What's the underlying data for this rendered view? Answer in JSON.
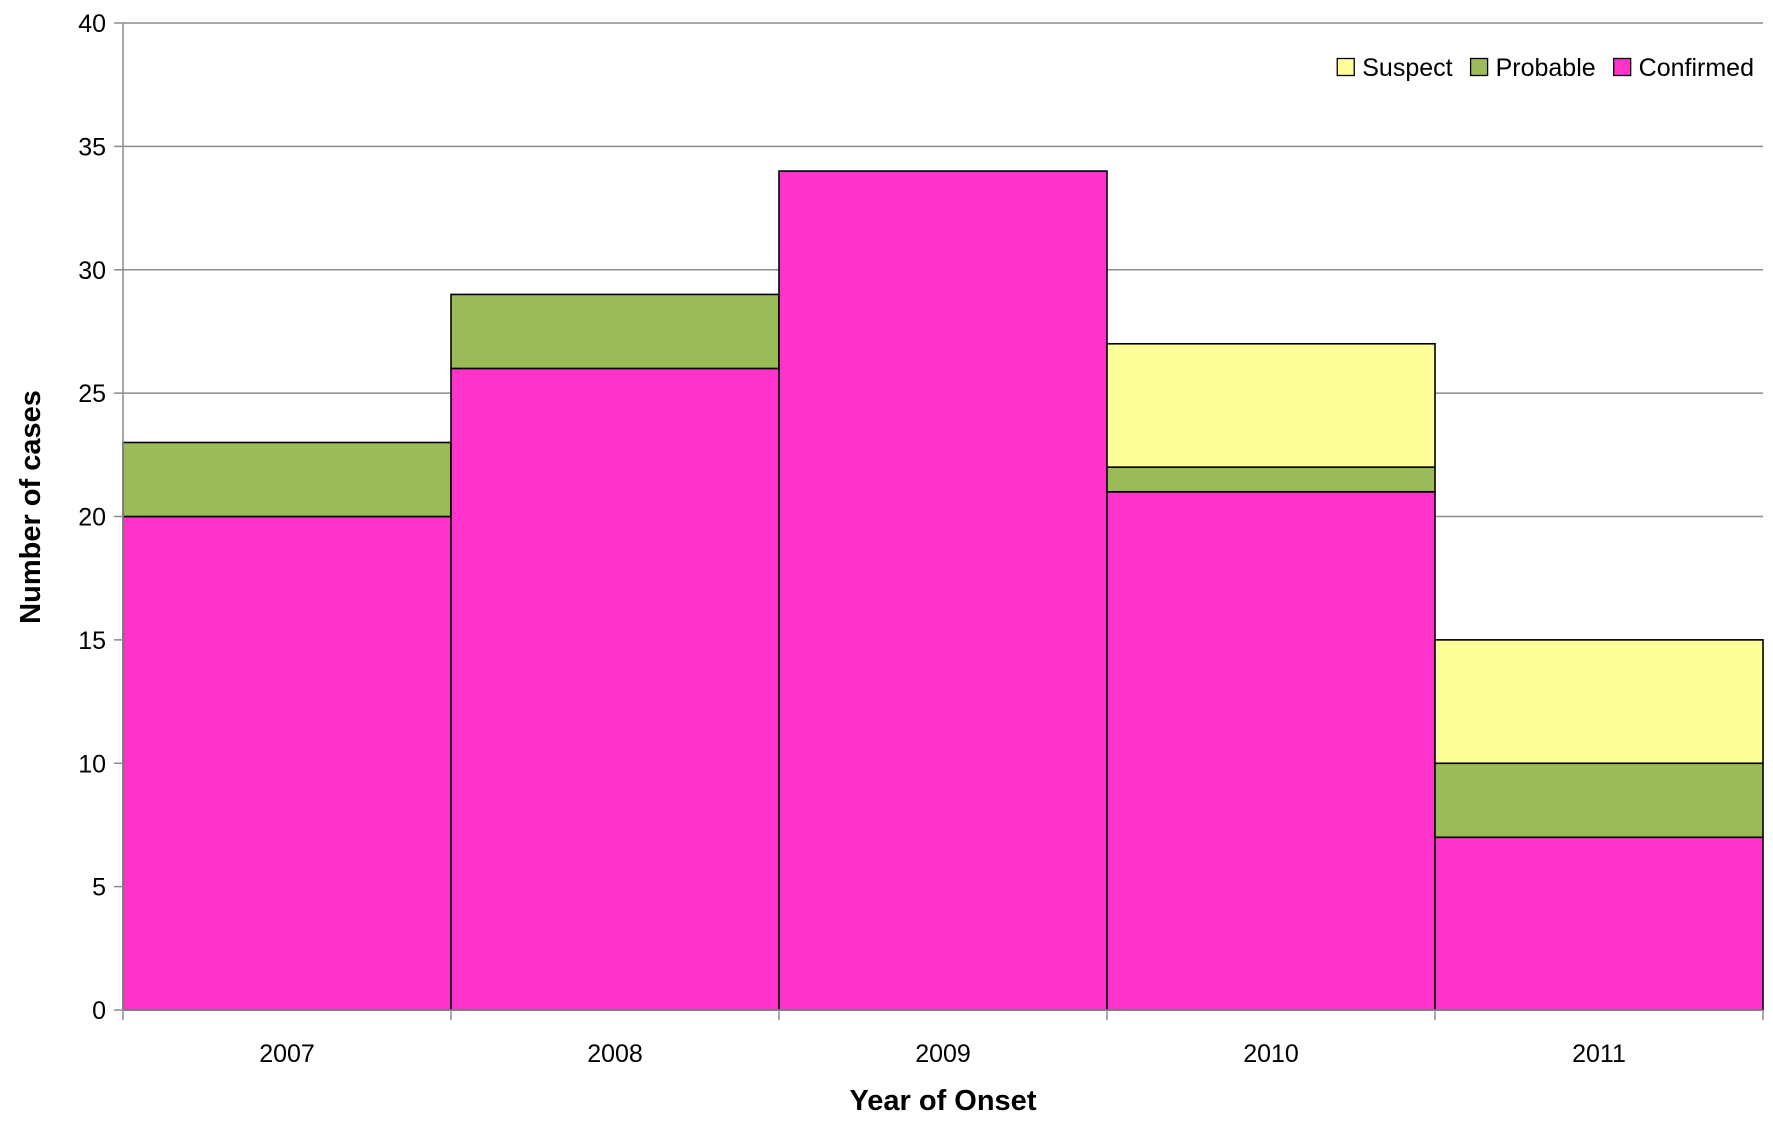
{
  "chart_data": {
    "type": "bar",
    "stacked": true,
    "bar_gap": 0,
    "title": "",
    "xlabel": "Year of Onset",
    "ylabel": "Number of cases",
    "categories": [
      "2007",
      "2008",
      "2009",
      "2010",
      "2011"
    ],
    "ylim": [
      0,
      40
    ],
    "ytick_step": 5,
    "grid": true,
    "legend": {
      "placement": "top-right",
      "order": [
        "Suspect",
        "Probable",
        "Confirmed"
      ]
    },
    "series": [
      {
        "name": "Confirmed",
        "values": [
          20,
          26,
          34,
          21,
          7
        ],
        "color": "#ff33cc"
      },
      {
        "name": "Probable",
        "values": [
          3,
          3,
          0,
          1,
          3
        ],
        "color": "#9bbb59"
      },
      {
        "name": "Suspect",
        "values": [
          0,
          0,
          0,
          5,
          5
        ],
        "color": "#ffff99"
      }
    ],
    "colors": {
      "grid": "#8c8c8c",
      "axis": "#8c8c8c",
      "bar_edge": "#000000"
    }
  }
}
